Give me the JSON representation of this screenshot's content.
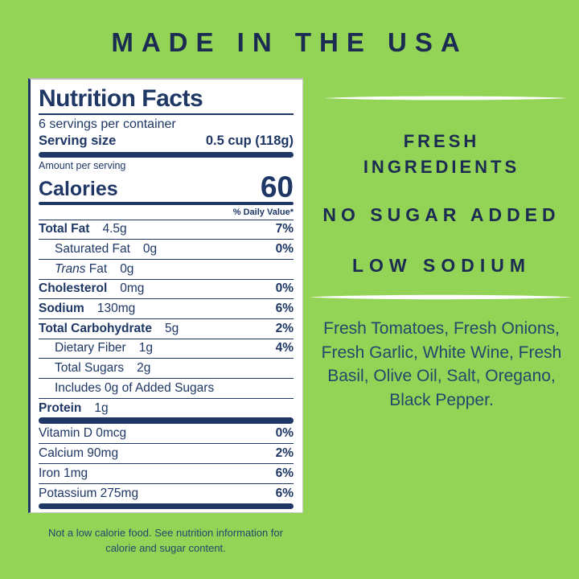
{
  "header": {
    "title": "MADE IN THE USA"
  },
  "colors": {
    "background_green": "#93D355",
    "heading_navy": "#1B2B52",
    "label_navy": "#1E3765",
    "body_blue": "#24476C",
    "label_background": "#FFFFFF"
  },
  "nutrition_label": {
    "title": "Nutrition Facts",
    "servings_per_container": "6 servings per container",
    "serving_size_label": "Serving size",
    "serving_size_value": "0.5 cup (118g)",
    "amount_per_serving": "Amount per serving",
    "calories_label": "Calories",
    "calories_value": "60",
    "daily_value_header": "% Daily Value*",
    "rows": [
      {
        "section": "main",
        "name": "Total Fat",
        "amount": "4.5g",
        "pct": "7%",
        "bold": true,
        "indent": 0
      },
      {
        "section": "main",
        "name": "Saturated Fat",
        "amount": "0g",
        "pct": "0%",
        "bold": false,
        "indent": 1
      },
      {
        "section": "main",
        "name": "Trans Fat",
        "italic_prefix": "Trans",
        "name_rest": "Fat",
        "amount": "0g",
        "pct": "",
        "bold": false,
        "indent": 1
      },
      {
        "section": "main",
        "name": "Cholesterol",
        "amount": "0mg",
        "pct": "0%",
        "bold": true,
        "indent": 0
      },
      {
        "section": "main",
        "name": "Sodium",
        "amount": "130mg",
        "pct": "6%",
        "bold": true,
        "indent": 0
      },
      {
        "section": "main",
        "name": "Total Carbohydrate",
        "amount": "5g",
        "pct": "2%",
        "bold": true,
        "indent": 0
      },
      {
        "section": "main",
        "name": "Dietary Fiber",
        "amount": "1g",
        "pct": "4%",
        "bold": false,
        "indent": 1
      },
      {
        "section": "main",
        "name": "Total Sugars",
        "amount": "2g",
        "pct": "",
        "bold": false,
        "indent": 1
      },
      {
        "section": "main",
        "name": "Includes 0g of Added Sugars",
        "amount": "",
        "pct": "",
        "bold": false,
        "indent": 1
      },
      {
        "section": "main",
        "name": "Protein",
        "amount": "1g",
        "pct": "",
        "bold": true,
        "indent": 0
      },
      {
        "section": "vitamins",
        "name": "Vitamin D 0mcg",
        "amount": "",
        "pct": "0%",
        "bold": false,
        "indent": 0
      },
      {
        "section": "vitamins",
        "name": "Calcium 90mg",
        "amount": "",
        "pct": "2%",
        "bold": false,
        "indent": 0
      },
      {
        "section": "vitamins",
        "name": "Iron 1mg",
        "amount": "",
        "pct": "6%",
        "bold": false,
        "indent": 0
      },
      {
        "section": "vitamins",
        "name": "Potassium 275mg",
        "amount": "",
        "pct": "6%",
        "bold": false,
        "indent": 0
      }
    ]
  },
  "footnote": "Not a low calorie food. See nutrition information for calorie and sugar content.",
  "right_column": {
    "claims": [
      "FRESH\nINGREDIENTS",
      "NO SUGAR ADDED",
      "LOW SODIUM"
    ],
    "ingredients": "Fresh Tomatoes, Fresh Onions, Fresh Garlic, White Wine, Fresh Basil, Olive Oil, Salt, Oregano, Black Pepper."
  }
}
